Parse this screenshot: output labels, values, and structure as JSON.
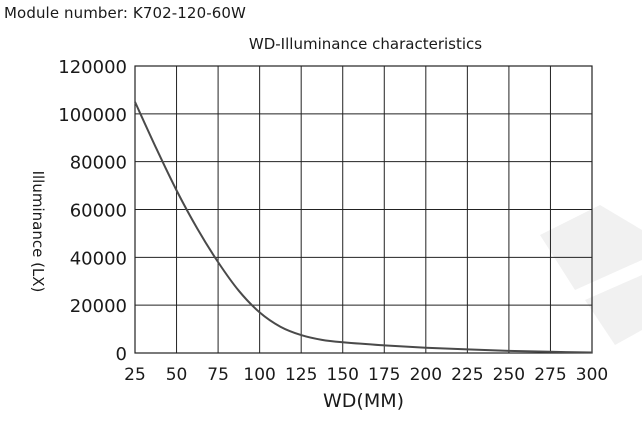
{
  "module_label": "Module number: K702-120-60W",
  "colors": {
    "curve": "#4a4a4a",
    "grid": "#222222",
    "watermark": "#f1f1f1"
  },
  "chart_data": {
    "type": "line",
    "title": "WD-Illuminance characteristics",
    "xlabel": "WD(MM)",
    "ylabel": "Illuminance (LX)",
    "x_ticks": [
      25,
      50,
      75,
      100,
      125,
      150,
      175,
      200,
      225,
      250,
      275,
      300
    ],
    "y_ticks": [
      0,
      20000,
      40000,
      60000,
      80000,
      100000,
      120000
    ],
    "xlim": [
      25,
      300
    ],
    "ylim": [
      0,
      120000
    ],
    "grid": true,
    "series": [
      {
        "name": "Illuminance",
        "x": [
          25,
          37.5,
          50,
          62.5,
          75,
          87.5,
          100,
          112.5,
          125,
          137.5,
          150,
          175,
          200,
          225,
          250,
          275,
          300
        ],
        "y": [
          105000,
          86000,
          68000,
          52000,
          38000,
          26000,
          17000,
          11000,
          7500,
          5500,
          4500,
          3200,
          2200,
          1500,
          900,
          500,
          200
        ]
      }
    ]
  }
}
